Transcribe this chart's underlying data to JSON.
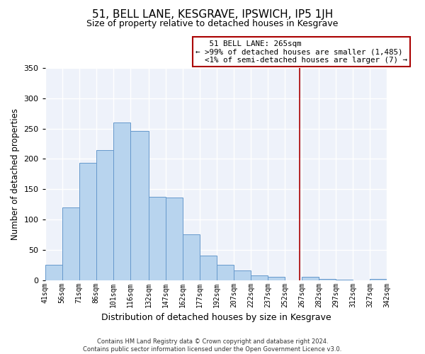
{
  "title": "51, BELL LANE, KESGRAVE, IPSWICH, IP5 1JH",
  "subtitle": "Size of property relative to detached houses in Kesgrave",
  "xlabel": "Distribution of detached houses by size in Kesgrave",
  "ylabel": "Number of detached properties",
  "bar_edges": [
    41,
    56,
    71,
    86,
    101,
    116,
    132,
    147,
    162,
    177,
    192,
    207,
    222,
    237,
    252,
    267,
    282,
    297,
    312,
    327,
    342
  ],
  "bar_heights": [
    25,
    120,
    193,
    215,
    260,
    246,
    137,
    136,
    76,
    40,
    25,
    16,
    8,
    5,
    0,
    5,
    2,
    1,
    0,
    2
  ],
  "bar_color": "#b8d4ee",
  "bar_edge_color": "#6699cc",
  "vline_x": 265,
  "vline_color": "#aa0000",
  "ylim": [
    0,
    350
  ],
  "yticks": [
    0,
    50,
    100,
    150,
    200,
    250,
    300,
    350
  ],
  "annotation_title": "51 BELL LANE: 265sqm",
  "annotation_line1": "← >99% of detached houses are smaller (1,485)",
  "annotation_line2": "  <1% of semi-detached houses are larger (7) →",
  "footer_line1": "Contains HM Land Registry data © Crown copyright and database right 2024.",
  "footer_line2": "Contains public sector information licensed under the Open Government Licence v3.0.",
  "fig_bg_color": "#ffffff",
  "plot_bg_color": "#eef2fa",
  "grid_color": "#ffffff",
  "tick_labels": [
    "41sqm",
    "56sqm",
    "71sqm",
    "86sqm",
    "101sqm",
    "116sqm",
    "132sqm",
    "147sqm",
    "162sqm",
    "177sqm",
    "192sqm",
    "207sqm",
    "222sqm",
    "237sqm",
    "252sqm",
    "267sqm",
    "282sqm",
    "297sqm",
    "312sqm",
    "327sqm",
    "342sqm"
  ]
}
